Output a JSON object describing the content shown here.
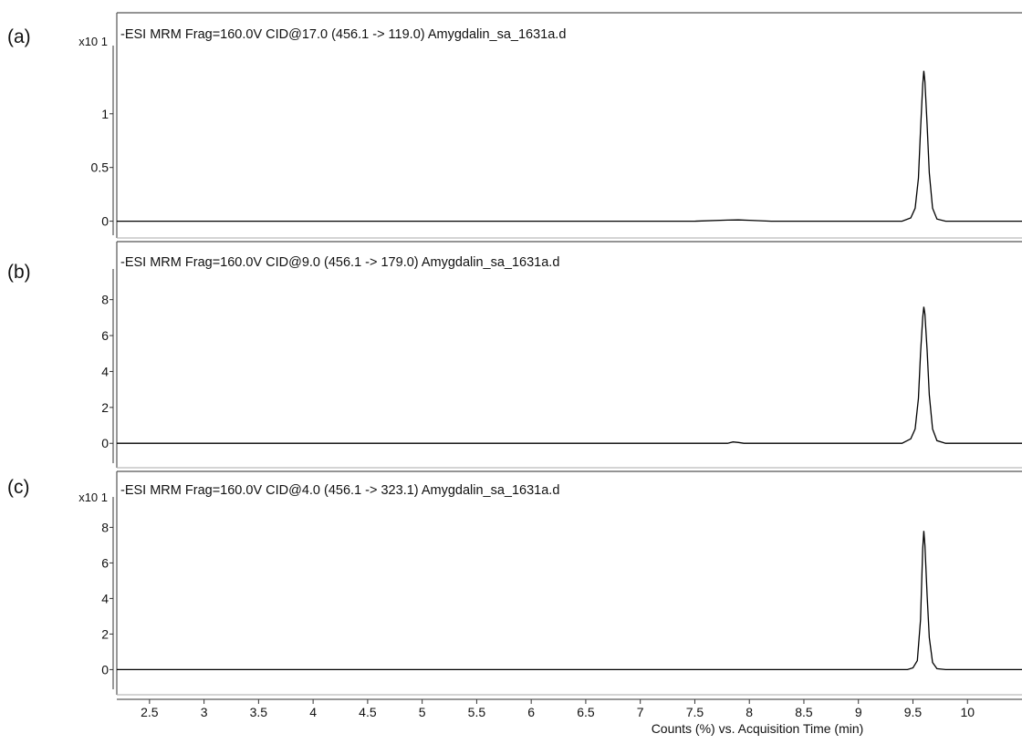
{
  "chart_data": [
    {
      "type": "line",
      "panel_label": "(a)",
      "title": "-ESI MRM Frag=160.0V CID@17.0 (456.1 -> 119.0) Amygdalin_sa_1631a.d",
      "y_multiplier": "x10 1",
      "yticks": [
        "0",
        "0.5",
        "1"
      ],
      "ylim": [
        -0.08,
        1.55
      ],
      "xlim": [
        2.2,
        10.5
      ],
      "series": [
        {
          "x": [
            2.2,
            7.5,
            7.8,
            7.9,
            8.0,
            8.2,
            9.4,
            9.48,
            9.52,
            9.55,
            9.57,
            9.59,
            9.6,
            9.61,
            9.63,
            9.65,
            9.68,
            9.72,
            9.8,
            10.5
          ],
          "y": [
            0,
            0,
            0.01,
            0.012,
            0.008,
            0,
            0,
            0.03,
            0.12,
            0.4,
            0.85,
            1.27,
            1.4,
            1.3,
            0.9,
            0.45,
            0.12,
            0.02,
            0,
            0
          ]
        }
      ]
    },
    {
      "type": "line",
      "panel_label": "(b)",
      "title": "-ESI MRM Frag=160.0V CID@9.0 (456.1 -> 179.0) Amygdalin_sa_1631a.d",
      "y_multiplier": "",
      "yticks": [
        "0",
        "2",
        "4",
        "6",
        "8"
      ],
      "ylim": [
        -0.8,
        9.2
      ],
      "xlim": [
        2.2,
        10.5
      ],
      "series": [
        {
          "x": [
            2.2,
            7.8,
            7.85,
            7.9,
            7.95,
            9.4,
            9.48,
            9.52,
            9.55,
            9.57,
            9.59,
            9.6,
            9.61,
            9.63,
            9.65,
            9.68,
            9.72,
            9.8,
            10.5
          ],
          "y": [
            0,
            0,
            0.08,
            0.05,
            0,
            0,
            0.25,
            0.8,
            2.5,
            5.0,
            7.0,
            7.6,
            7.2,
            5.2,
            2.7,
            0.8,
            0.15,
            0,
            0
          ]
        }
      ]
    },
    {
      "type": "line",
      "panel_label": "(c)",
      "title": "-ESI MRM Frag=160.0V CID@4.0 (456.1 -> 323.1) Amygdalin_sa_1631a.d",
      "y_multiplier": "x10 1",
      "yticks": [
        "0",
        "2",
        "4",
        "6",
        "8"
      ],
      "ylim": [
        -0.8,
        9.2
      ],
      "xlim": [
        2.2,
        10.5
      ],
      "series": [
        {
          "x": [
            2.2,
            9.45,
            9.5,
            9.54,
            9.57,
            9.59,
            9.6,
            9.61,
            9.63,
            9.65,
            9.68,
            9.72,
            9.8,
            10.5
          ],
          "y": [
            0,
            0,
            0.1,
            0.5,
            2.8,
            6.8,
            7.8,
            7.0,
            4.2,
            1.8,
            0.4,
            0.05,
            0,
            0
          ]
        }
      ]
    }
  ],
  "x_axis": {
    "ticks": [
      "2.5",
      "3",
      "3.5",
      "4",
      "4.5",
      "5",
      "5.5",
      "6",
      "6.5",
      "7",
      "7.5",
      "8",
      "8.5",
      "9",
      "9.5",
      "10"
    ],
    "title": "Counts (%) vs. Acquisition Time (min)"
  }
}
